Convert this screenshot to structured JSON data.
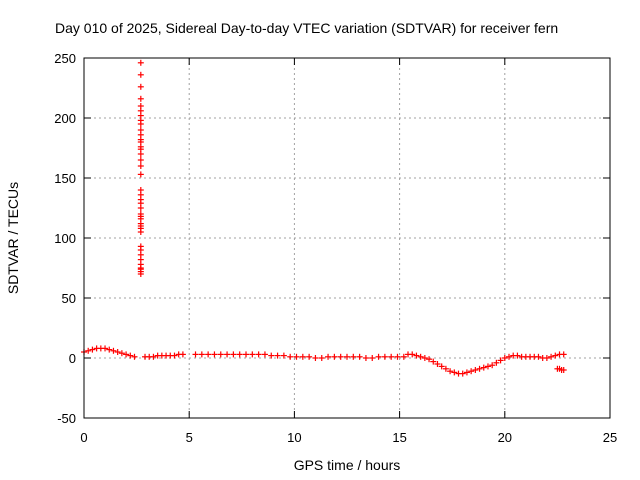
{
  "chart_data": {
    "type": "scatter",
    "title": "Day 010 of 2025, Sidereal Day-to-day VTEC variation (SDTVAR) for receiver fern",
    "xlabel": "GPS time / hours",
    "ylabel": "SDTVAR / TECUs",
    "xlim": [
      0,
      25
    ],
    "ylim": [
      -50,
      250
    ],
    "xticks": [
      0,
      5,
      10,
      15,
      20,
      25
    ],
    "yticks": [
      -50,
      0,
      50,
      100,
      150,
      200,
      250
    ],
    "grid": true,
    "marker": "+",
    "color": "#ff0000",
    "series": [
      {
        "name": "SDTVAR",
        "segments": [
          {
            "x": [
              0.0,
              0.2,
              0.4,
              0.6,
              0.8,
              1.0,
              1.2,
              1.4,
              1.6,
              1.8,
              2.0,
              2.2,
              2.4
            ],
            "y": [
              5,
              6,
              7,
              8,
              8,
              8,
              7,
              6,
              5,
              4,
              3,
              2,
              1
            ]
          },
          {
            "x": [
              2.9,
              3.1,
              3.3,
              3.5,
              3.7,
              3.9,
              4.1,
              4.3,
              4.5,
              4.7
            ],
            "y": [
              1,
              1,
              1,
              2,
              2,
              2,
              2,
              2,
              3,
              3
            ]
          },
          {
            "x": [
              5.3,
              5.6,
              5.9,
              6.2,
              6.5,
              6.8,
              7.1,
              7.4,
              7.7,
              8.0,
              8.3,
              8.6,
              8.9,
              9.2,
              9.5,
              9.8,
              10.1,
              10.4,
              10.7,
              11.0,
              11.3,
              11.6,
              11.9,
              12.2,
              12.5,
              12.8,
              13.1,
              13.4,
              13.7,
              14.0,
              14.3,
              14.6,
              14.9,
              15.2
            ],
            "y": [
              3,
              3,
              3,
              3,
              3,
              3,
              3,
              3,
              3,
              3,
              3,
              3,
              2,
              2,
              2,
              1,
              1,
              1,
              1,
              0,
              0,
              1,
              1,
              1,
              1,
              1,
              1,
              0,
              0,
              1,
              1,
              1,
              1,
              1
            ]
          },
          {
            "x": [
              15.4,
              15.6,
              15.8,
              16.0,
              16.2,
              16.4,
              16.6,
              16.8,
              17.0,
              17.2,
              17.4,
              17.6,
              17.8,
              18.0,
              18.2,
              18.4,
              18.6,
              18.8,
              19.0,
              19.2,
              19.4,
              19.6,
              19.8,
              20.0,
              20.2,
              20.4,
              20.6,
              20.8,
              21.0,
              21.2,
              21.4,
              21.6,
              21.8,
              22.0,
              22.2,
              22.4,
              22.6,
              22.8
            ],
            "y": [
              3,
              3,
              2,
              1,
              0,
              -1,
              -3,
              -5,
              -7,
              -9,
              -11,
              -12,
              -13,
              -13,
              -12,
              -11,
              -10,
              -9,
              -8,
              -7,
              -6,
              -4,
              -2,
              0,
              1,
              2,
              2,
              1,
              1,
              1,
              1,
              1,
              0,
              0,
              1,
              2,
              3,
              3
            ]
          },
          {
            "x": [
              22.5,
              22.6,
              22.7,
              22.8
            ],
            "y": [
              -9,
              -9,
              -10,
              -10
            ]
          },
          {
            "x": [
              2.7,
              2.7,
              2.7,
              2.7,
              2.7,
              2.7,
              2.7,
              2.7,
              2.7,
              2.7,
              2.7,
              2.7,
              2.7,
              2.7,
              2.7,
              2.7,
              2.7,
              2.7,
              2.7,
              2.7,
              2.7,
              2.7,
              2.7,
              2.7,
              2.7,
              2.7,
              2.7,
              2.7,
              2.7,
              2.7,
              2.7,
              2.7,
              2.7,
              2.7,
              2.7,
              2.7,
              2.7,
              2.7,
              2.7,
              2.7
            ],
            "y": [
              70,
              72,
              75,
              78,
              82,
              86,
              90,
              105,
              108,
              112,
              116,
              120,
              125,
              129,
              132,
              136,
              140,
              153,
              160,
              165,
              170,
              176,
              182,
              186,
              190,
              195,
              198,
              202,
              206,
              210,
              216,
              226,
              236,
              246,
              180,
              174,
              118,
              110,
              93,
              74
            ]
          }
        ]
      }
    ]
  }
}
